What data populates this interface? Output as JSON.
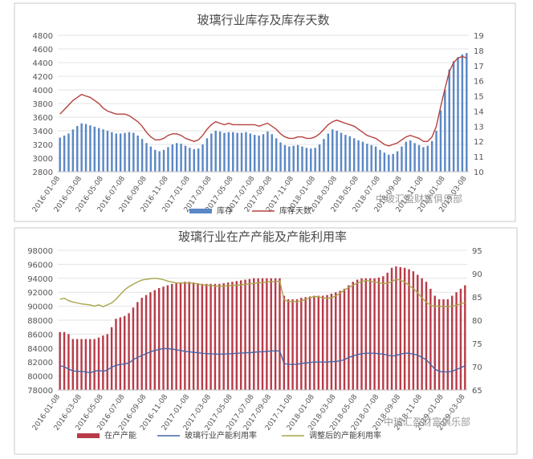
{
  "chart_data": [
    {
      "type": "bar",
      "title": "玻璃行业库存及库存天数",
      "x_ticks": [
        "2016-01-08",
        "2016-03-08",
        "2016-05-08",
        "2016-07-08",
        "2016-09-08",
        "2016-11-08",
        "2017-01-08",
        "2017-03-08",
        "2017-05-08",
        "2017-07-08",
        "2017-09-08",
        "2017-11-08",
        "2018-01-08",
        "2018-03-08",
        "2018-05-08",
        "2018-07-08",
        "2018-09-08",
        "2018-11-08",
        "2019-01-08",
        "2019-03-08"
      ],
      "y_left": {
        "min": 2800,
        "max": 4800,
        "step": 200
      },
      "y_right": {
        "min": 10,
        "max": 19,
        "step": 1
      },
      "series": [
        {
          "name": "库存",
          "kind": "bar",
          "axis": "left",
          "color": "#5b87c5",
          "values": [
            3300,
            3330,
            3360,
            3420,
            3470,
            3510,
            3500,
            3480,
            3460,
            3440,
            3420,
            3400,
            3380,
            3360,
            3360,
            3370,
            3380,
            3370,
            3330,
            3280,
            3220,
            3170,
            3120,
            3100,
            3120,
            3160,
            3200,
            3220,
            3210,
            3180,
            3150,
            3130,
            3140,
            3200,
            3290,
            3360,
            3400,
            3390,
            3370,
            3380,
            3380,
            3370,
            3370,
            3380,
            3360,
            3340,
            3330,
            3350,
            3390,
            3350,
            3290,
            3230,
            3190,
            3170,
            3180,
            3190,
            3170,
            3150,
            3140,
            3150,
            3200,
            3280,
            3360,
            3420,
            3400,
            3370,
            3340,
            3320,
            3290,
            3260,
            3240,
            3210,
            3190,
            3170,
            3120,
            3080,
            3050,
            3060,
            3100,
            3170,
            3240,
            3260,
            3220,
            3190,
            3160,
            3180,
            3250,
            3400,
            3700,
            4000,
            4300,
            4420,
            4480,
            4520,
            4540
          ]
        },
        {
          "name": "库存天数",
          "kind": "line",
          "axis": "right",
          "color": "#b5423d",
          "values": [
            13.8,
            14.1,
            14.4,
            14.7,
            14.9,
            15.1,
            15.0,
            14.9,
            14.7,
            14.5,
            14.2,
            14.0,
            13.9,
            13.8,
            13.8,
            13.8,
            13.7,
            13.5,
            13.3,
            13.0,
            12.6,
            12.3,
            12.1,
            12.1,
            12.2,
            12.4,
            12.5,
            12.5,
            12.4,
            12.2,
            12.1,
            12.0,
            12.1,
            12.4,
            12.8,
            13.1,
            13.3,
            13.2,
            13.1,
            13.2,
            13.1,
            13.1,
            13.1,
            13.1,
            13.1,
            13.1,
            13.0,
            13.1,
            13.2,
            13.0,
            12.8,
            12.5,
            12.3,
            12.2,
            12.2,
            12.3,
            12.3,
            12.2,
            12.2,
            12.3,
            12.5,
            12.8,
            13.1,
            13.3,
            13.4,
            13.3,
            13.2,
            13.1,
            13.0,
            12.8,
            12.6,
            12.4,
            12.3,
            12.2,
            12.0,
            11.8,
            11.7,
            11.8,
            11.9,
            12.1,
            12.3,
            12.4,
            12.3,
            12.2,
            12.0,
            12.0,
            12.3,
            13.0,
            14.3,
            15.5,
            16.6,
            17.2,
            17.5,
            17.6,
            17.5
          ]
        }
      ],
      "legend": [
        "库存",
        "库存天数"
      ],
      "watermark": "中玻汇盈财富俱乐部"
    },
    {
      "type": "bar",
      "title": "玻璃行业在产产能及产能利用率",
      "x_ticks": [
        "2016-01-08",
        "2016-03-08",
        "2016-05-08",
        "2016-07-08",
        "2016-09-08",
        "2016-11-08",
        "2017-01-08",
        "2017-03-08",
        "2017-05-08",
        "2017-07-08",
        "2017-09-08",
        "2017-11-08",
        "2018-01-08",
        "2018-03-08",
        "2018-05-08",
        "2018-07-08",
        "2018-09-08",
        "2018-11-08",
        "2019-01-08",
        "2019-03-08"
      ],
      "y_left": {
        "min": 78000,
        "max": 98000,
        "step": 2000
      },
      "y_right": {
        "min": 65,
        "max": 95,
        "step": 5
      },
      "series": [
        {
          "name": "在产产能",
          "kind": "bar",
          "axis": "left",
          "color": "#b83b48",
          "values": [
            86300,
            86300,
            86000,
            85300,
            85300,
            85300,
            85300,
            85300,
            85300,
            85500,
            85800,
            86000,
            87000,
            88200,
            88400,
            88600,
            89000,
            89800,
            90600,
            91200,
            91600,
            92000,
            92300,
            92600,
            92800,
            93000,
            93200,
            93300,
            93400,
            93500,
            93500,
            93400,
            93300,
            93200,
            93200,
            93200,
            93200,
            93200,
            93300,
            93400,
            93500,
            93600,
            93700,
            93800,
            93900,
            94000,
            94000,
            94000,
            94000,
            94000,
            94000,
            94000,
            91500,
            91000,
            91000,
            91000,
            91200,
            91300,
            91400,
            91500,
            91500,
            91500,
            91600,
            91800,
            92000,
            92200,
            92500,
            93000,
            93500,
            93800,
            94000,
            94000,
            94000,
            94000,
            94100,
            94300,
            94800,
            95500,
            95700,
            95600,
            95500,
            95300,
            95000,
            94500,
            94000,
            93500,
            92500,
            91500,
            91000,
            91000,
            91000,
            91500,
            92000,
            92500,
            93000
          ]
        },
        {
          "name": "玻璃行业产能利用率",
          "kind": "line",
          "axis": "right",
          "color": "#4565a8",
          "values": [
            70.2,
            70.0,
            69.5,
            69.1,
            69.0,
            69.0,
            68.9,
            68.7,
            69.0,
            69.2,
            69.0,
            69.3,
            69.9,
            70.3,
            70.5,
            70.6,
            70.8,
            71.5,
            72.0,
            72.4,
            72.8,
            73.2,
            73.5,
            73.7,
            73.9,
            73.9,
            73.8,
            73.6,
            73.5,
            73.3,
            73.2,
            73.1,
            73.0,
            72.9,
            72.8,
            72.8,
            72.7,
            72.7,
            72.7,
            72.8,
            72.8,
            72.9,
            72.9,
            73.0,
            73.0,
            73.1,
            73.2,
            73.2,
            73.3,
            73.4,
            73.4,
            73.4,
            70.7,
            70.5,
            70.5,
            70.5,
            70.7,
            70.8,
            70.9,
            71.0,
            71.0,
            71.0,
            71.0,
            71.1,
            71.1,
            71.3,
            71.5,
            72.0,
            72.3,
            72.6,
            72.8,
            72.9,
            72.9,
            72.9,
            72.8,
            72.7,
            72.5,
            72.3,
            72.4,
            72.7,
            72.9,
            72.9,
            72.7,
            72.5,
            72.0,
            71.5,
            70.5,
            69.5,
            69.0,
            68.9,
            68.9,
            69.0,
            69.4,
            69.8,
            70.2
          ]
        },
        {
          "name": "调整后的产能利用率",
          "kind": "line",
          "axis": "right",
          "color": "#a8a64a",
          "values": [
            84.5,
            84.7,
            84.2,
            83.9,
            83.7,
            83.5,
            83.4,
            83.3,
            83.0,
            83.3,
            82.9,
            83.3,
            83.7,
            84.5,
            85.5,
            86.5,
            87.2,
            87.7,
            88.2,
            88.6,
            88.8,
            88.9,
            89.0,
            88.9,
            88.7,
            88.4,
            88.2,
            88.0,
            88.0,
            88.0,
            88.0,
            87.9,
            87.8,
            87.6,
            87.5,
            87.5,
            87.3,
            87.3,
            87.3,
            87.4,
            87.5,
            87.5,
            87.6,
            87.7,
            87.8,
            87.9,
            88.0,
            88.1,
            88.2,
            88.3,
            88.3,
            88.4,
            84.4,
            84.0,
            84.0,
            84.0,
            84.1,
            84.5,
            84.8,
            85.1,
            85.0,
            84.8,
            84.7,
            84.8,
            85.2,
            85.8,
            86.5,
            87.0,
            87.5,
            88.0,
            88.3,
            88.5,
            88.4,
            88.2,
            88.0,
            87.9,
            87.9,
            88.3,
            88.8,
            88.6,
            88.2,
            87.5,
            86.8,
            85.9,
            84.8,
            83.9,
            83.2,
            83.0,
            83.0,
            82.9,
            82.9,
            83.0,
            83.2,
            83.5,
            83.8
          ]
        }
      ],
      "legend": [
        "在产产能",
        "玻璃行业产能利用率",
        "调整后的产能利用率"
      ],
      "watermark": "中玻汇盈财富俱乐部"
    }
  ]
}
